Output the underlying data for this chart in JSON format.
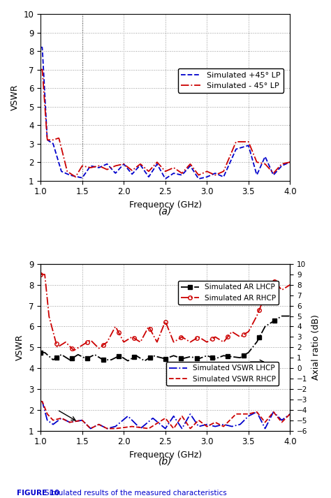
{
  "fig_width": 4.74,
  "fig_height": 7.13,
  "dpi": 100,
  "background_color": "#ffffff",
  "subplot_a": {
    "xlim": [
      1.0,
      4.0
    ],
    "ylim": [
      1,
      10
    ],
    "yticks": [
      1,
      2,
      3,
      4,
      5,
      6,
      7,
      8,
      9,
      10
    ],
    "xticks": [
      1.0,
      1.5,
      2.0,
      2.5,
      3.0,
      3.5,
      4.0
    ],
    "xlabel": "Frequency (GHz)",
    "ylabel": "VSWR",
    "label_a": "(a)",
    "grid_color": "#999999",
    "legend": [
      {
        "label": "Simulated +45° LP",
        "color": "#0000cc",
        "linestyle": "--"
      },
      {
        "label": "Simulated - 45° LP",
        "color": "#cc0000",
        "linestyle": "-."
      }
    ],
    "vline_x": 1.5,
    "vline_color": "#777777"
  },
  "subplot_b": {
    "xlim": [
      1.0,
      4.0
    ],
    "ylim_left": [
      1,
      9
    ],
    "ylim_right": [
      -6,
      10
    ],
    "yticks_left": [
      1,
      2,
      3,
      4,
      5,
      6,
      7,
      8,
      9
    ],
    "yticks_right": [
      -6,
      -5,
      -4,
      -3,
      -2,
      -1,
      0,
      1,
      2,
      3,
      4,
      5,
      6,
      7,
      8,
      9,
      10
    ],
    "xticks": [
      1.0,
      1.5,
      2.0,
      2.5,
      3.0,
      3.5,
      4.0
    ],
    "xlabel": "Frequency (GHz)",
    "ylabel_left": "VSWR",
    "ylabel_right": "Axial ratio (dB)",
    "label_b": "(b)",
    "grid_color": "#999999",
    "legend_ar": [
      {
        "label": "Simulated AR LHCP",
        "color": "#000000",
        "linestyle": "-."
      },
      {
        "label": "Simulated AR RHCP",
        "color": "#cc0000",
        "linestyle": "-."
      }
    ],
    "legend_vswr": [
      {
        "label": "Simulated VSWR LHCP",
        "color": "#0000cc",
        "linestyle": "-."
      },
      {
        "label": "Simulated VSWR RHCP",
        "color": "#cc0000",
        "linestyle": "-."
      }
    ]
  },
  "caption_bold": "FIGURE 10  ",
  "caption_rest": "Simulated results of the measured characteristics",
  "caption_color": "#0000cc"
}
